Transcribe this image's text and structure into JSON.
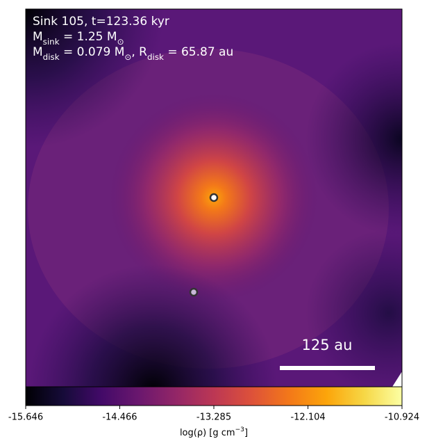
{
  "chart_data": {
    "type": "image",
    "annotations": [
      [
        {
          "text": "Sink 105, t=123.36 kyr"
        }
      ],
      [
        {
          "text": "M"
        },
        {
          "sub": "sink"
        },
        {
          "text": " = 1.25 M"
        },
        {
          "sub": "⊙"
        }
      ],
      [
        {
          "text": "M"
        },
        {
          "sub": "disk"
        },
        {
          "text": " = 0.079 M"
        },
        {
          "sub": "⊙"
        },
        {
          "text": ", R"
        },
        {
          "sub": "disk"
        },
        {
          "text": " = 65.87 au"
        }
      ]
    ],
    "scale_bar": "125 au",
    "colorbar": {
      "lim": [
        -15.646,
        -10.924
      ],
      "ticks": [
        -15.646,
        -14.466,
        -13.285,
        -12.104,
        -10.924
      ],
      "label": [
        {
          "text": "log(ρ) [g cm"
        },
        {
          "sup": "−3"
        },
        {
          "text": "]"
        }
      ],
      "colors": [
        "#000004",
        "#160b39",
        "#420a68",
        "#6a176e",
        "#932667",
        "#bc3754",
        "#dd513a",
        "#f37819",
        "#fca50a",
        "#f6d746",
        "#fcffa4"
      ]
    }
  }
}
